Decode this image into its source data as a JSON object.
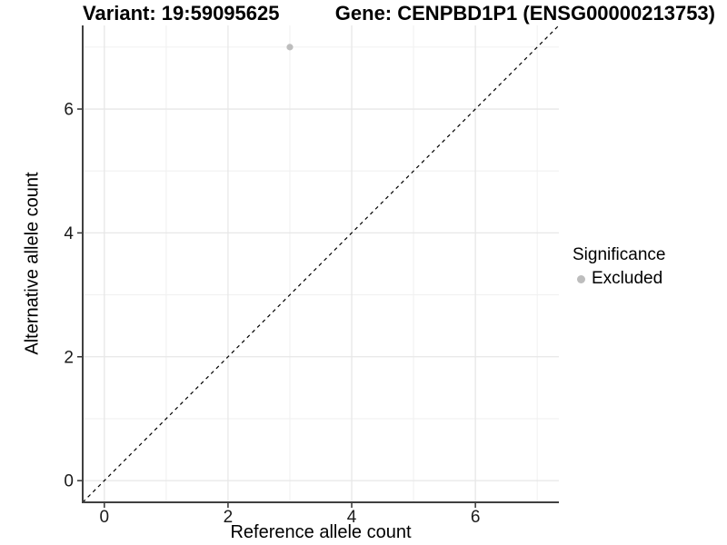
{
  "header": {
    "variant_title": "Variant: 19:59095625",
    "gene_title": "Gene: CENPBD1P1 (ENSG00000213753)"
  },
  "chart_data": {
    "type": "scatter",
    "title": "Variant: 19:59095625 — Gene: CENPBD1P1 (ENSG00000213753)",
    "xlabel": "Reference allele count",
    "ylabel": "Alternative allele count",
    "xlim": [
      -0.35,
      7.35
    ],
    "ylim": [
      -0.35,
      7.35
    ],
    "x_major_ticks": [
      0,
      2,
      4,
      6
    ],
    "y_major_ticks": [
      0,
      2,
      4,
      6
    ],
    "x_minor_gridlines": [
      1,
      3,
      5,
      7
    ],
    "y_minor_gridlines": [
      1,
      3,
      5,
      7
    ],
    "grid": "major and minor, light gray on white",
    "legend_position": "right",
    "series": [
      {
        "name": "Excluded",
        "color": "#bdbdbd",
        "points": [
          {
            "x": 3,
            "y": 7
          }
        ]
      }
    ],
    "reference_line": {
      "kind": "identity y = x",
      "style": "dashed",
      "color": "#000000",
      "from": [
        -0.35,
        -0.35
      ],
      "to": [
        7.35,
        7.35
      ]
    }
  },
  "legend": {
    "title": "Significance",
    "items": [
      {
        "label": "Excluded",
        "swatch_color": "#bdbdbd"
      }
    ]
  },
  "style": {
    "background": "#ffffff",
    "grid_major_color": "#e7e7e7",
    "grid_minor_color": "#f1f1f1",
    "axis_line_color": "#404040",
    "tick_mark_color": "#333333",
    "tick_label_color": "#1a1a1a",
    "point_color": "#bdbdbd"
  }
}
